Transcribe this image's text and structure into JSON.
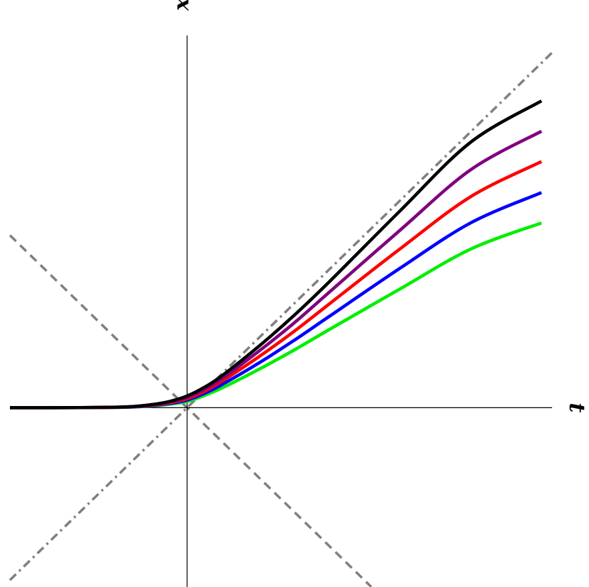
{
  "chart_data": {
    "type": "line",
    "title": "",
    "xlabel": "t",
    "ylabel": "x",
    "xlim": [
      -2.5,
      5.15
    ],
    "ylim": [
      -2.58,
      5.45
    ],
    "grid": false,
    "legend": "none",
    "reference_lines": [
      {
        "slope": 1,
        "intercept": 0,
        "style": "dash-dot",
        "color": "#808080"
      },
      {
        "slope": -1,
        "intercept": 0,
        "style": "dashed",
        "color": "#808080"
      }
    ],
    "series": [
      {
        "color": "#00ee00",
        "x": [
          -2.5,
          -2,
          -1.5,
          -1,
          -0.75,
          -0.5,
          -0.25,
          0,
          0.25,
          0.5,
          1,
          1.5,
          2,
          3,
          4,
          5
        ],
        "y": [
          0.0,
          0.0,
          0.001,
          0.004,
          0.01,
          0.025,
          0.05,
          0.09,
          0.18,
          0.29,
          0.55,
          0.83,
          1.13,
          1.72,
          2.3,
          2.68
        ]
      },
      {
        "color": "#0000ff",
        "x": [
          -2.5,
          -2,
          -1.5,
          -1,
          -0.75,
          -0.5,
          -0.25,
          0,
          0.25,
          0.5,
          1,
          1.5,
          2,
          3,
          4,
          5
        ],
        "y": [
          0.0,
          0.0,
          0.001,
          0.005,
          0.012,
          0.03,
          0.06,
          0.11,
          0.21,
          0.34,
          0.64,
          0.97,
          1.32,
          2.02,
          2.68,
          3.12
        ]
      },
      {
        "color": "#ff0000",
        "x": [
          -2.5,
          -2,
          -1.5,
          -1,
          -0.75,
          -0.5,
          -0.25,
          0,
          0.25,
          0.5,
          1,
          1.5,
          2,
          3,
          4,
          5
        ],
        "y": [
          0.0,
          0.0,
          0.002,
          0.006,
          0.014,
          0.035,
          0.07,
          0.13,
          0.24,
          0.39,
          0.73,
          1.1,
          1.5,
          2.3,
          3.06,
          3.57
        ]
      },
      {
        "color": "#800080",
        "x": [
          -2.5,
          -2,
          -1.5,
          -1,
          -0.75,
          -0.5,
          -0.25,
          0,
          0.25,
          0.5,
          1,
          1.5,
          2,
          3,
          4,
          5
        ],
        "y": [
          0.0,
          0.0,
          0.002,
          0.007,
          0.016,
          0.04,
          0.08,
          0.15,
          0.27,
          0.43,
          0.81,
          1.22,
          1.67,
          2.57,
          3.45,
          4.01
        ]
      },
      {
        "color": "#000000",
        "x": [
          -2.5,
          -2,
          -1.5,
          -1,
          -0.75,
          -0.5,
          -0.25,
          0,
          0.25,
          0.5,
          1,
          1.5,
          2,
          3,
          4,
          5
        ],
        "y": [
          0.0,
          0.0,
          0.002,
          0.008,
          0.018,
          0.045,
          0.09,
          0.17,
          0.3,
          0.47,
          0.88,
          1.33,
          1.82,
          2.85,
          3.85,
          4.45
        ]
      }
    ]
  }
}
